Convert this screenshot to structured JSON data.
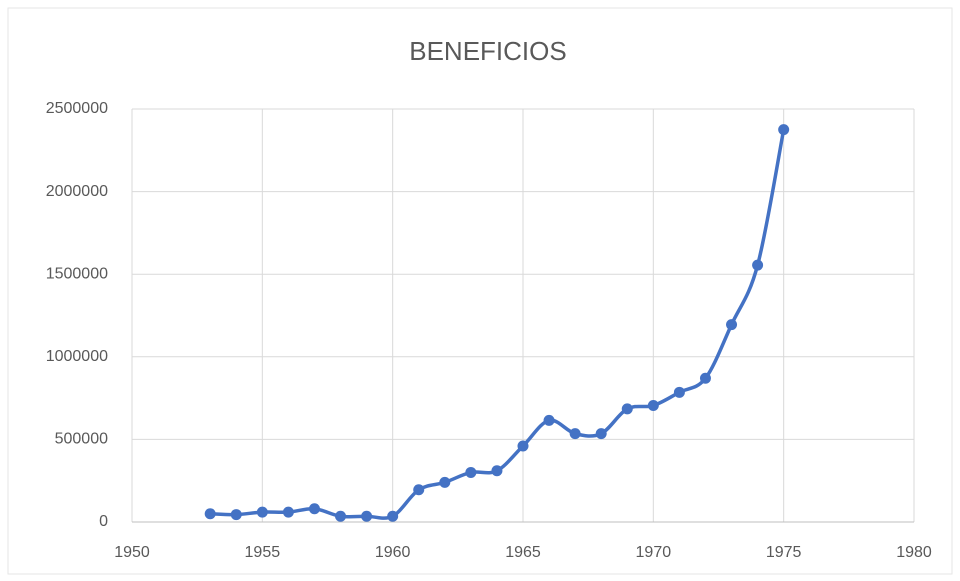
{
  "chart_data": {
    "type": "scatter",
    "title": "BENEFICIOS",
    "x": [
      1953,
      1954,
      1955,
      1956,
      1957,
      1958,
      1959,
      1960,
      1961,
      1962,
      1963,
      1964,
      1965,
      1966,
      1967,
      1968,
      1969,
      1970,
      1971,
      1972,
      1973,
      1974,
      1975
    ],
    "values": [
      50000,
      45000,
      60000,
      60000,
      80000,
      35000,
      35000,
      35000,
      195000,
      240000,
      300000,
      310000,
      460000,
      615000,
      535000,
      535000,
      685000,
      705000,
      785000,
      870000,
      1195000,
      1555000,
      2375000
    ],
    "color": "#4472c4",
    "smooth": true,
    "grid": true,
    "xlim": [
      1950,
      1980
    ],
    "xticks": [
      1950,
      1955,
      1960,
      1965,
      1970,
      1975,
      1980
    ],
    "ylim": [
      0,
      2500000
    ],
    "yticks": [
      0,
      500000,
      1000000,
      1500000,
      2000000,
      2500000
    ]
  }
}
